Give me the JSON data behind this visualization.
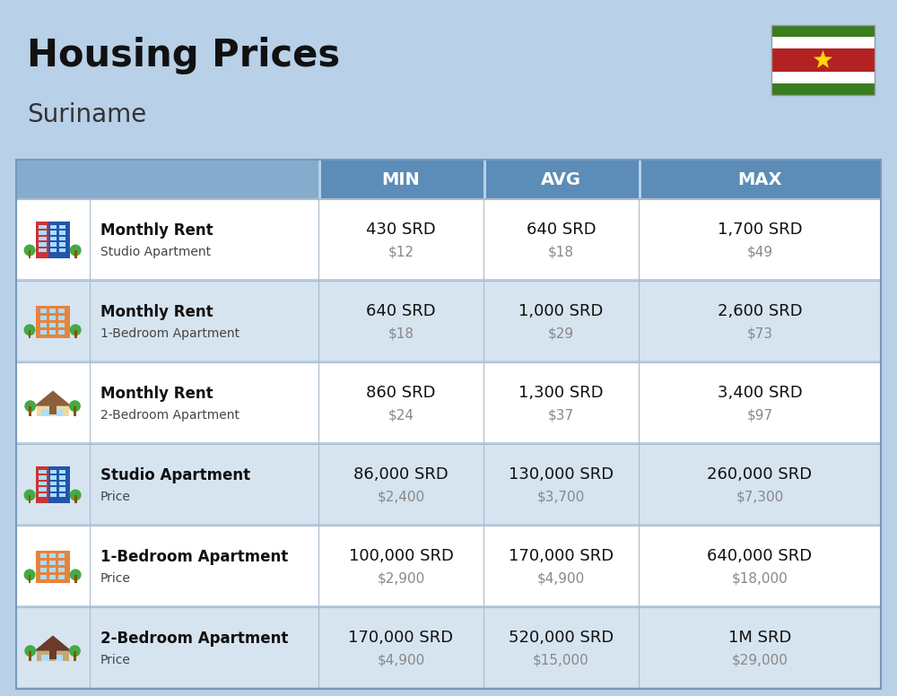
{
  "title": "Housing Prices",
  "subtitle": "Suriname",
  "background_color": "#B8D0E8",
  "header_bg": "#5B8DB8",
  "header_text_color": "#FFFFFF",
  "row_bg_light": "#FFFFFF",
  "row_bg_dark": "#D6E4F0",
  "col_headers": [
    "MIN",
    "AVG",
    "MAX"
  ],
  "rows": [
    {
      "bold_label": "Monthly Rent",
      "sub_label": "Studio Apartment",
      "min_srd": "430 SRD",
      "min_usd": "$12",
      "avg_srd": "640 SRD",
      "avg_usd": "$18",
      "max_srd": "1,700 SRD",
      "max_usd": "$49",
      "icon_type": "studio_blue"
    },
    {
      "bold_label": "Monthly Rent",
      "sub_label": "1-Bedroom Apartment",
      "min_srd": "640 SRD",
      "min_usd": "$18",
      "avg_srd": "1,000 SRD",
      "avg_usd": "$29",
      "max_srd": "2,600 SRD",
      "max_usd": "$73",
      "icon_type": "apartment_orange"
    },
    {
      "bold_label": "Monthly Rent",
      "sub_label": "2-Bedroom Apartment",
      "min_srd": "860 SRD",
      "min_usd": "$24",
      "avg_srd": "1,300 SRD",
      "avg_usd": "$37",
      "max_srd": "3,400 SRD",
      "max_usd": "$97",
      "icon_type": "house_beige"
    },
    {
      "bold_label": "Studio Apartment",
      "sub_label": "Price",
      "min_srd": "86,000 SRD",
      "min_usd": "$2,400",
      "avg_srd": "130,000 SRD",
      "avg_usd": "$3,700",
      "max_srd": "260,000 SRD",
      "max_usd": "$7,300",
      "icon_type": "studio_blue"
    },
    {
      "bold_label": "1-Bedroom Apartment",
      "sub_label": "Price",
      "min_srd": "100,000 SRD",
      "min_usd": "$2,900",
      "avg_srd": "170,000 SRD",
      "avg_usd": "$4,900",
      "max_srd": "640,000 SRD",
      "max_usd": "$18,000",
      "icon_type": "apartment_orange"
    },
    {
      "bold_label": "2-Bedroom Apartment",
      "sub_label": "Price",
      "min_srd": "170,000 SRD",
      "min_usd": "$4,900",
      "avg_srd": "520,000 SRD",
      "avg_usd": "$15,000",
      "max_srd": "1M SRD",
      "max_usd": "$29,000",
      "icon_type": "house_brown"
    }
  ],
  "flag_colors": {
    "green": "#3A7D1E",
    "white": "#FFFFFF",
    "red": "#B22222",
    "star": "#FFD700"
  },
  "title_fontsize": 30,
  "subtitle_fontsize": 20,
  "header_fontsize": 14,
  "srd_fontsize": 13,
  "usd_fontsize": 11
}
